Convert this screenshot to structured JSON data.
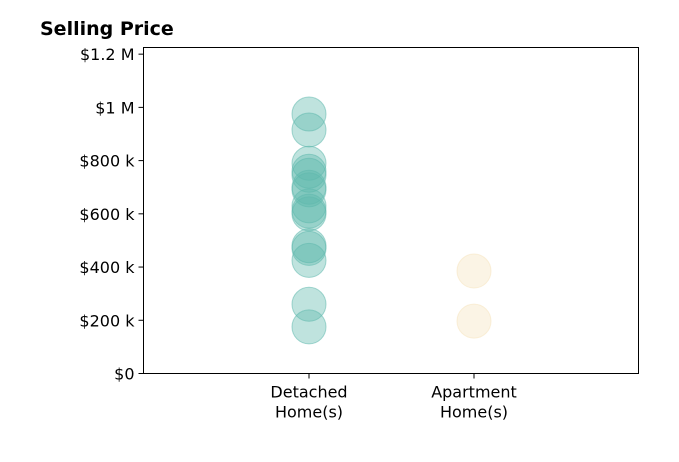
{
  "chart_data": {
    "type": "scatter",
    "title": "Selling Price",
    "xlabel": "",
    "ylabel": "",
    "categories": [
      [
        "Detached",
        "Home(s)"
      ],
      [
        "Apartment",
        "Home(s)"
      ]
    ],
    "ylim": [
      0,
      1225000
    ],
    "y_ticks": [
      0,
      200000,
      400000,
      600000,
      800000,
      1000000,
      1200000
    ],
    "y_tick_labels": [
      "$0",
      "$200 k",
      "$400 k",
      "$600 k",
      "$800 k",
      "$1 M",
      "$1.2 M"
    ],
    "grid": false,
    "legend": "none",
    "series": [
      {
        "category_index": 0,
        "color": "#5fb8ad",
        "values": [
          975000,
          915000,
          790000,
          760000,
          745000,
          700000,
          690000,
          630000,
          610000,
          600000,
          480000,
          470000,
          425000,
          260000,
          175000
        ]
      },
      {
        "category_index": 1,
        "color": "#f6e3bd",
        "values": [
          385000,
          197000
        ]
      }
    ]
  }
}
